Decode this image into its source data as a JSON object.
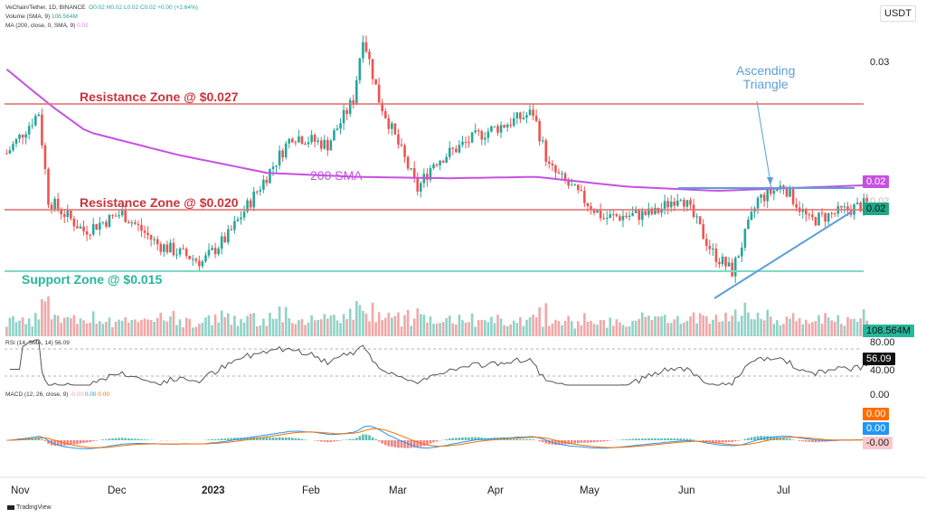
{
  "header": {
    "symbol": "VeChain/Tether, 1D, BINANCE",
    "ohlc": {
      "o": "O0.02",
      "h": "H0.02",
      "l": "L0.02",
      "c": "C0.02",
      "chg": "+0.00 (+2.64%)"
    },
    "volume_label": "Volume (SMA, 9)",
    "volume_value": "108.564M",
    "ma_label": "MA (200, close, 0, SMA, 9)",
    "ma_value": "0.02",
    "rsi_label": "RSI (14, SMA, 14)",
    "rsi_value": "56.09",
    "macd_label": "MACD (12, 26, close, 9)",
    "macd_values": [
      "-0.00",
      "0.00",
      "0.00"
    ],
    "currency": "USDT"
  },
  "axis": {
    "price_tick": "0.03",
    "ma_pill": "0.02",
    "price_pill": "0.02",
    "price_ghost": "0.02",
    "volume_pill": "108.564M",
    "rsi_ticks": [
      "80.00",
      "40.00"
    ],
    "rsi_pill": "56.09",
    "macd_tick": "0.00",
    "macd_pills": [
      "0.00",
      "0.00",
      "-0.00"
    ],
    "time_labels": [
      "Nov",
      "Dec",
      "2023",
      "Feb",
      "Mar",
      "Apr",
      "May",
      "Jun",
      "Jul"
    ]
  },
  "annotations": {
    "res1": "Resistance Zone @ $0.027",
    "res2": "Resistance Zone @ $0.020",
    "support": "Support Zone @ $0.015",
    "sma": "200 SMA",
    "triangle": [
      "Ascending",
      "Triangle"
    ]
  },
  "footer": {
    "logo": "TradingView"
  },
  "colors": {
    "up": "#26a69a",
    "down": "#ef5350",
    "ma": "#c651e0",
    "resistance": "#e57373",
    "support": "#80d8c8",
    "triangle": "#5b9fd8",
    "macd": "#2196f3",
    "signal": "#ff6d00"
  },
  "chart_data": {
    "type": "candlestick",
    "scale": "log",
    "levels": {
      "resistance": [
        0.027,
        0.02
      ],
      "support": 0.015
    },
    "close_path": [
      [
        "2022-10-29",
        0.0227
      ],
      [
        "2022-11-08",
        0.0262
      ],
      [
        "2022-11-11",
        0.0193
      ],
      [
        "2022-11-22",
        0.0173
      ],
      [
        "2022-12-04",
        0.0184
      ],
      [
        "2022-12-15",
        0.0165
      ],
      [
        "2022-12-29",
        0.0155
      ],
      [
        "2023-01-06",
        0.017
      ],
      [
        "2023-01-17",
        0.0206
      ],
      [
        "2023-01-26",
        0.0242
      ],
      [
        "2023-02-06",
        0.0234
      ],
      [
        "2023-02-14",
        0.0274
      ],
      [
        "2023-02-17",
        0.0344
      ],
      [
        "2023-02-22",
        0.0274
      ],
      [
        "2023-03-06",
        0.02
      ],
      [
        "2023-03-11",
        0.022
      ],
      [
        "2023-03-25",
        0.0242
      ],
      [
        "2023-04-11",
        0.0262
      ],
      [
        "2023-04-16",
        0.0216
      ],
      [
        "2023-05-03",
        0.0181
      ],
      [
        "2023-05-19",
        0.0184
      ],
      [
        "2023-05-27",
        0.0197
      ],
      [
        "2023-06-06",
        0.016
      ],
      [
        "2023-06-12",
        0.015
      ],
      [
        "2023-06-20",
        0.0193
      ],
      [
        "2023-06-28",
        0.0203
      ],
      [
        "2023-07-06",
        0.0179
      ],
      [
        "2023-07-24",
        0.019
      ]
    ],
    "sma200_path": [
      [
        "2022-10-29",
        0.0305
      ],
      [
        "2022-11-12",
        0.0268
      ],
      [
        "2022-11-23",
        0.0245
      ],
      [
        "2022-12-21",
        0.0226
      ],
      [
        "2023-01-18",
        0.0212
      ],
      [
        "2023-02-15",
        0.0209
      ],
      [
        "2023-03-16",
        0.0208
      ],
      [
        "2023-04-12",
        0.0209
      ],
      [
        "2023-05-10",
        0.0202
      ],
      [
        "2023-06-07",
        0.0199
      ],
      [
        "2023-07-24",
        0.0203
      ]
    ],
    "rsi_levels": [
      80,
      40
    ]
  }
}
